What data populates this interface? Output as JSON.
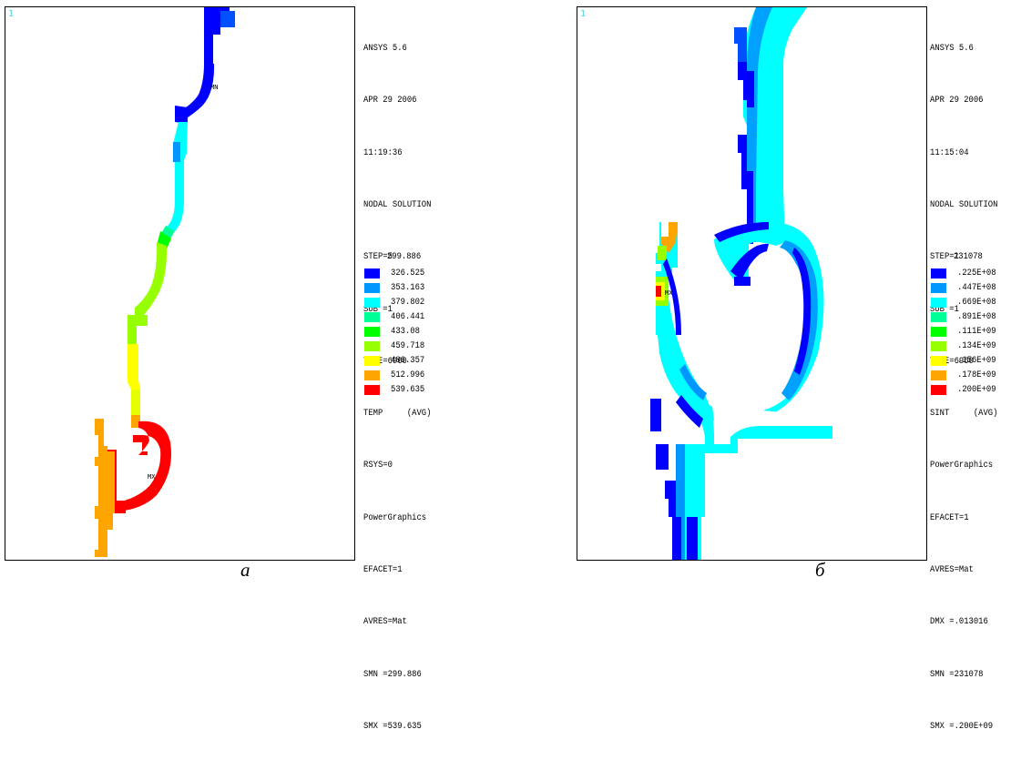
{
  "panels": [
    {
      "viewport_number": "1",
      "header": [
        "ANSYS 5.6",
        "APR 29 2006",
        "11:19:36",
        "NODAL SOLUTION",
        "STEP=5",
        "SUB =1",
        "TIME=6960",
        "TEMP     (AVG)",
        "RSYS=0",
        "PowerGraphics",
        "EFACET=1",
        "AVRES=Mat",
        "SMN =299.886",
        "SMX =539.635"
      ],
      "legend_min": "299.886",
      "legend": [
        {
          "label": "326.525",
          "color": "#0000ff"
        },
        {
          "label": "353.163",
          "color": "#0096ff"
        },
        {
          "label": "379.802",
          "color": "#00ffff"
        },
        {
          "label": "406.441",
          "color": "#00ff96"
        },
        {
          "label": "433.08",
          "color": "#00ff00"
        },
        {
          "label": "459.718",
          "color": "#96ff00"
        },
        {
          "label": "486.357",
          "color": "#ffff00"
        },
        {
          "label": "512.996",
          "color": "#ffa500"
        },
        {
          "label": "539.635",
          "color": "#ff0000"
        }
      ],
      "caption": "а"
    },
    {
      "viewport_number": "1",
      "header": [
        "ANSYS 5.6",
        "APR 29 2006",
        "11:15:04",
        "NODAL SOLUTION",
        "STEP=1",
        "SUB =1",
        "TIME=6960",
        "SINT     (AVG)",
        "PowerGraphics",
        "EFACET=1",
        "AVRES=Mat",
        "DMX =.013016",
        "SMN =231078",
        "SMX =.200E+09"
      ],
      "legend_min": "231078",
      "legend": [
        {
          "label": ".225E+08",
          "color": "#0000ff"
        },
        {
          "label": ".447E+08",
          "color": "#0096ff"
        },
        {
          "label": ".669E+08",
          "color": "#00ffff"
        },
        {
          "label": ".891E+08",
          "color": "#00ff96"
        },
        {
          "label": ".111E+09",
          "color": "#00ff00"
        },
        {
          "label": ".134E+09",
          "color": "#96ff00"
        },
        {
          "label": ".156E+09",
          "color": "#ffff00"
        },
        {
          "label": ".178E+09",
          "color": "#ffa500"
        },
        {
          "label": ".200E+09",
          "color": "#ff0000"
        }
      ],
      "caption": "б"
    }
  ]
}
